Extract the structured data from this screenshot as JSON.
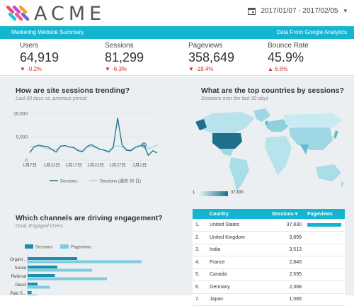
{
  "header": {
    "brand": "ACME",
    "date_range": "2017/01/07 - 2017/02/05"
  },
  "band": {
    "left": "Marketing Website Summary",
    "right": "Data From Google Analytics"
  },
  "kpis": [
    {
      "label": "Users",
      "value": "64,919",
      "delta": "-0.2%",
      "dir": "down"
    },
    {
      "label": "Sessions",
      "value": "81,299",
      "delta": "-6.3%",
      "dir": "down"
    },
    {
      "label": "Pageviews",
      "value": "358,649",
      "delta": "-18.4%",
      "dir": "down"
    },
    {
      "label": "Bounce Rate",
      "value": "45.9%",
      "delta": "6.6%",
      "dir": "up"
    }
  ],
  "trend": {
    "title": "How are site sessions trending?",
    "subtitle": "Last 30 days vs. previous period"
  },
  "countries": {
    "title": "What are the top countries by sessions?",
    "subtitle": "Sessions over the last 30 days",
    "legend_min": "1",
    "legend_max": "37,830"
  },
  "channels": {
    "title": "Which channels are driving engagement?",
    "subtitle": "Goal: Engaged Users"
  },
  "table": {
    "headers": [
      "Country",
      "Sessions",
      "Pageviews"
    ],
    "sort_icon": "arrow-down-icon",
    "rows": [
      {
        "rank": "1.",
        "country": "United States",
        "sessions": "37,830"
      },
      {
        "rank": "2.",
        "country": "United Kingdom",
        "sessions": "3,899"
      },
      {
        "rank": "3.",
        "country": "India",
        "sessions": "3,513"
      },
      {
        "rank": "4.",
        "country": "France",
        "sessions": "2,846"
      },
      {
        "rank": "5.",
        "country": "Canada",
        "sessions": "2,595"
      },
      {
        "rank": "6.",
        "country": "Germany",
        "sessions": "2,368"
      },
      {
        "rank": "7.",
        "country": "Japan",
        "sessions": "1,585"
      }
    ]
  },
  "chart_data": [
    {
      "type": "line",
      "x": [
        "1月7日",
        "1月8日",
        "1月9日",
        "1月10日",
        "1月11日",
        "1月12日",
        "1月13日",
        "1月14日",
        "1月15日",
        "1月16日",
        "1月17日",
        "1月18日",
        "1月19日",
        "1月20日",
        "1月21日",
        "1月22日",
        "1月23日",
        "1月24日",
        "1月25日",
        "1月26日",
        "1月27日",
        "1月28日",
        "1月29日",
        "1月30日",
        "1月31日",
        "2月1日",
        "2月2日",
        "2月3日",
        "2月4日",
        "2月5日"
      ],
      "xticks": [
        "1月7日",
        "1月12日",
        "1月17日",
        "1月22日",
        "1月27日",
        "2月1日"
      ],
      "yticks": [
        "0",
        "5,000",
        "10,000"
      ],
      "ylim": [
        0,
        10000
      ],
      "series": [
        {
          "name": "Sessions",
          "color": "#1f6f8b",
          "values": [
            1600,
            2800,
            3200,
            3000,
            2900,
            2300,
            1700,
            3000,
            3100,
            2800,
            2700,
            2000,
            1800,
            2900,
            3300,
            2800,
            2300,
            2100,
            1700,
            2700,
            9000,
            3300,
            2100,
            2000,
            2700,
            3000,
            3200,
            1000,
            2000,
            1500
          ]
        },
        {
          "name": "Sessions (過去 30 日)",
          "color": "#9fd8e4",
          "values": [
            2800,
            3000,
            2900,
            2700,
            2400,
            2300,
            2200,
            2900,
            3100,
            2800,
            2600,
            2300,
            2000,
            2700,
            2900,
            2600,
            2300,
            2100,
            2000,
            2800,
            3100,
            2800,
            2400,
            2200,
            2800,
            3300,
            3500,
            2400,
            2800,
            3200
          ]
        }
      ]
    },
    {
      "type": "bar",
      "orientation": "horizontal",
      "categories": [
        "Organi...",
        "Social",
        "Referral",
        "Direct",
        "Paid S..."
      ],
      "series": [
        {
          "name": "Sessions",
          "color": "#1a8fb0",
          "values": [
            100,
            60,
            55,
            20,
            8
          ]
        },
        {
          "name": "Pageviews",
          "color": "#7dcde0",
          "values": [
            230,
            130,
            160,
            45,
            18
          ]
        }
      ]
    }
  ],
  "colors": {
    "accent": "#13b5d1",
    "down": "#d32f2f"
  }
}
